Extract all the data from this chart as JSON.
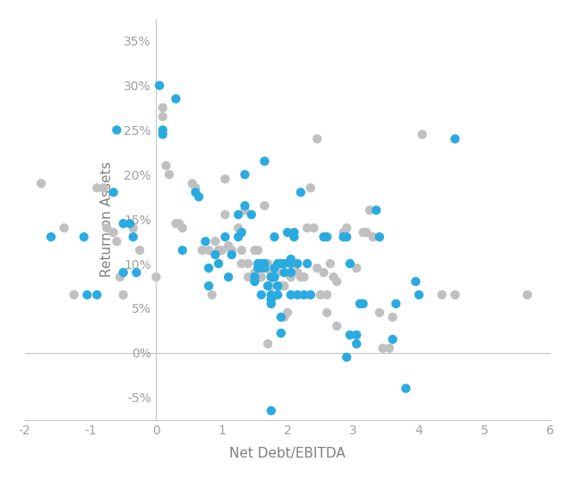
{
  "blue_points": [
    [
      -1.6,
      0.13
    ],
    [
      -1.1,
      0.13
    ],
    [
      -1.05,
      0.065
    ],
    [
      -0.9,
      0.065
    ],
    [
      -0.65,
      0.18
    ],
    [
      -0.6,
      0.25
    ],
    [
      -0.5,
      0.145
    ],
    [
      -0.5,
      0.09
    ],
    [
      -0.4,
      0.145
    ],
    [
      -0.35,
      0.13
    ],
    [
      -0.3,
      0.09
    ],
    [
      0.05,
      0.3
    ],
    [
      0.1,
      0.245
    ],
    [
      0.1,
      0.25
    ],
    [
      0.3,
      0.285
    ],
    [
      0.4,
      0.115
    ],
    [
      0.6,
      0.18
    ],
    [
      0.65,
      0.175
    ],
    [
      0.75,
      0.125
    ],
    [
      0.8,
      0.095
    ],
    [
      0.8,
      0.075
    ],
    [
      0.9,
      0.11
    ],
    [
      0.95,
      0.1
    ],
    [
      1.05,
      0.13
    ],
    [
      1.1,
      0.085
    ],
    [
      1.15,
      0.11
    ],
    [
      1.25,
      0.155
    ],
    [
      1.25,
      0.13
    ],
    [
      1.3,
      0.135
    ],
    [
      1.35,
      0.2
    ],
    [
      1.35,
      0.165
    ],
    [
      1.45,
      0.155
    ],
    [
      1.5,
      0.085
    ],
    [
      1.5,
      0.08
    ],
    [
      1.55,
      0.1
    ],
    [
      1.55,
      0.095
    ],
    [
      1.6,
      0.1
    ],
    [
      1.6,
      0.065
    ],
    [
      1.65,
      0.215
    ],
    [
      1.65,
      0.1
    ],
    [
      1.65,
      0.095
    ],
    [
      1.7,
      0.075
    ],
    [
      1.75,
      0.085
    ],
    [
      1.75,
      0.065
    ],
    [
      1.75,
      0.06
    ],
    [
      1.75,
      0.055
    ],
    [
      1.8,
      0.13
    ],
    [
      1.8,
      0.095
    ],
    [
      1.8,
      0.085
    ],
    [
      1.85,
      0.1
    ],
    [
      1.85,
      0.075
    ],
    [
      1.85,
      0.065
    ],
    [
      1.9,
      0.1
    ],
    [
      1.9,
      0.04
    ],
    [
      1.9,
      0.022
    ],
    [
      1.95,
      0.1
    ],
    [
      1.95,
      0.09
    ],
    [
      2.0,
      0.135
    ],
    [
      2.05,
      0.105
    ],
    [
      2.05,
      0.1
    ],
    [
      2.05,
      0.09
    ],
    [
      2.05,
      0.065
    ],
    [
      2.1,
      0.135
    ],
    [
      2.1,
      0.13
    ],
    [
      2.15,
      0.1
    ],
    [
      2.15,
      0.065
    ],
    [
      2.2,
      0.18
    ],
    [
      2.25,
      0.065
    ],
    [
      2.3,
      0.1
    ],
    [
      2.35,
      0.065
    ],
    [
      2.55,
      0.13
    ],
    [
      2.6,
      0.13
    ],
    [
      2.85,
      0.13
    ],
    [
      2.9,
      0.13
    ],
    [
      2.95,
      0.1
    ],
    [
      2.95,
      0.02
    ],
    [
      3.05,
      0.02
    ],
    [
      3.05,
      0.01
    ],
    [
      3.1,
      0.055
    ],
    [
      3.15,
      0.055
    ],
    [
      3.35,
      0.16
    ],
    [
      3.4,
      0.13
    ],
    [
      3.6,
      0.015
    ],
    [
      3.65,
      0.055
    ],
    [
      3.8,
      -0.04
    ],
    [
      3.95,
      0.08
    ],
    [
      4.0,
      0.065
    ],
    [
      4.55,
      0.24
    ],
    [
      2.9,
      -0.005
    ],
    [
      1.75,
      -0.065
    ]
  ],
  "gray_points": [
    [
      -1.75,
      0.19
    ],
    [
      -1.4,
      0.14
    ],
    [
      -1.25,
      0.065
    ],
    [
      -0.9,
      0.185
    ],
    [
      -0.8,
      0.185
    ],
    [
      -0.75,
      0.14
    ],
    [
      -0.65,
      0.135
    ],
    [
      -0.6,
      0.125
    ],
    [
      -0.55,
      0.085
    ],
    [
      -0.5,
      0.065
    ],
    [
      -0.35,
      0.14
    ],
    [
      -0.25,
      0.115
    ],
    [
      0.0,
      0.085
    ],
    [
      0.1,
      0.265
    ],
    [
      0.1,
      0.275
    ],
    [
      0.15,
      0.21
    ],
    [
      0.2,
      0.2
    ],
    [
      0.3,
      0.145
    ],
    [
      0.35,
      0.145
    ],
    [
      0.4,
      0.14
    ],
    [
      0.55,
      0.19
    ],
    [
      0.6,
      0.185
    ],
    [
      0.7,
      0.115
    ],
    [
      0.8,
      0.115
    ],
    [
      0.85,
      0.065
    ],
    [
      0.9,
      0.125
    ],
    [
      0.95,
      0.115
    ],
    [
      1.0,
      0.115
    ],
    [
      1.05,
      0.195
    ],
    [
      1.05,
      0.155
    ],
    [
      1.1,
      0.12
    ],
    [
      1.15,
      0.115
    ],
    [
      1.25,
      0.14
    ],
    [
      1.3,
      0.115
    ],
    [
      1.3,
      0.1
    ],
    [
      1.35,
      0.16
    ],
    [
      1.4,
      0.1
    ],
    [
      1.4,
      0.085
    ],
    [
      1.45,
      0.085
    ],
    [
      1.5,
      0.115
    ],
    [
      1.5,
      0.09
    ],
    [
      1.55,
      0.115
    ],
    [
      1.55,
      0.09
    ],
    [
      1.55,
      0.085
    ],
    [
      1.6,
      0.085
    ],
    [
      1.65,
      0.165
    ],
    [
      1.65,
      0.1
    ],
    [
      1.7,
      0.1
    ],
    [
      1.75,
      0.09
    ],
    [
      1.75,
      0.085
    ],
    [
      1.75,
      0.075
    ],
    [
      1.8,
      0.09
    ],
    [
      1.8,
      0.085
    ],
    [
      1.85,
      0.09
    ],
    [
      1.9,
      0.075
    ],
    [
      1.95,
      0.075
    ],
    [
      1.95,
      0.04
    ],
    [
      2.0,
      0.045
    ],
    [
      2.05,
      0.09
    ],
    [
      2.05,
      0.085
    ],
    [
      2.1,
      0.09
    ],
    [
      2.15,
      0.09
    ],
    [
      2.2,
      0.085
    ],
    [
      2.25,
      0.085
    ],
    [
      2.3,
      0.14
    ],
    [
      2.35,
      0.185
    ],
    [
      2.4,
      0.14
    ],
    [
      2.45,
      0.095
    ],
    [
      2.5,
      0.065
    ],
    [
      2.55,
      0.09
    ],
    [
      2.6,
      0.065
    ],
    [
      2.6,
      0.045
    ],
    [
      2.65,
      0.1
    ],
    [
      2.7,
      0.085
    ],
    [
      2.75,
      0.08
    ],
    [
      2.75,
      0.03
    ],
    [
      2.85,
      0.135
    ],
    [
      2.9,
      0.14
    ],
    [
      3.05,
      0.095
    ],
    [
      3.15,
      0.135
    ],
    [
      3.2,
      0.135
    ],
    [
      3.25,
      0.16
    ],
    [
      3.3,
      0.13
    ],
    [
      3.4,
      0.045
    ],
    [
      3.45,
      0.005
    ],
    [
      3.6,
      0.04
    ],
    [
      4.05,
      0.245
    ],
    [
      4.35,
      0.065
    ],
    [
      4.55,
      0.065
    ],
    [
      5.65,
      0.065
    ],
    [
      1.7,
      0.01
    ],
    [
      2.45,
      0.24
    ],
    [
      3.55,
      0.005
    ]
  ],
  "blue_color": "#29ABE2",
  "gray_color": "#C0C0C0",
  "xlabel": "Net Debt/EBITDA",
  "ylabel": "Return on Assets",
  "xlim": [
    -2,
    6
  ],
  "ylim": [
    -0.075,
    0.375
  ],
  "xticks": [
    -2,
    -1,
    0,
    1,
    2,
    3,
    4,
    5,
    6
  ],
  "yticks": [
    -0.05,
    0.0,
    0.05,
    0.1,
    0.15,
    0.2,
    0.25,
    0.3,
    0.35
  ],
  "marker_size": 55,
  "background_color": "#FFFFFF",
  "spine_color": "#C8C8C8",
  "tick_color": "#A0A0A0",
  "label_color": "#808080"
}
